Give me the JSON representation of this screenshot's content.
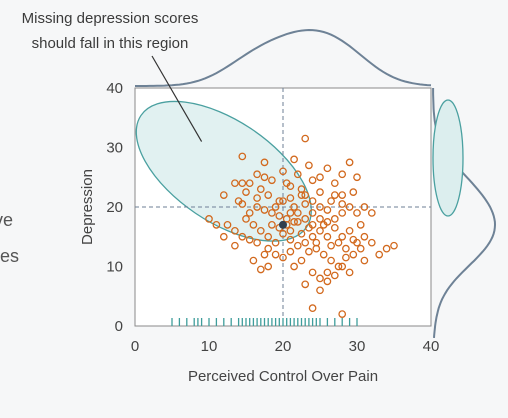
{
  "chart_data": {
    "type": "scatter",
    "xlabel": "Perceived Control Over Pain",
    "ylabel": "Depression",
    "xlim": [
      0,
      40
    ],
    "ylim": [
      0,
      40
    ],
    "xticks": [
      0,
      10,
      20,
      30,
      40
    ],
    "yticks": [
      0,
      10,
      20,
      30,
      40
    ],
    "reference_lines": {
      "x": 20,
      "y": 20
    },
    "mean_point": {
      "x": 20,
      "y": 17
    },
    "annotation": {
      "lines": [
        "Missing depression scores",
        "should fall in this region"
      ],
      "target": {
        "x": 9,
        "y": 31
      }
    },
    "missing_region": {
      "cx": 12,
      "cy": 26,
      "rx": 13.5,
      "ry": 8.5,
      "angle_deg": -34
    },
    "rug_x": [
      5,
      6,
      7,
      8,
      8.5,
      9,
      10,
      11,
      12,
      13,
      14,
      14.5,
      15,
      15.5,
      16,
      16.5,
      17,
      17.5,
      18,
      18.5,
      19,
      19.5,
      20,
      20.5,
      21,
      21.5,
      22,
      22.5,
      23,
      23.5,
      24,
      24.5,
      25,
      26,
      27,
      28,
      29,
      30
    ],
    "points": [
      [
        14.5,
        28.5
      ],
      [
        17.5,
        27.5
      ],
      [
        21.5,
        28
      ],
      [
        23.5,
        27
      ],
      [
        23,
        31.5
      ],
      [
        20,
        26
      ],
      [
        16.5,
        25.5
      ],
      [
        18.5,
        24.5
      ],
      [
        15.5,
        24
      ],
      [
        14.5,
        24
      ],
      [
        13.5,
        24
      ],
      [
        12,
        22
      ],
      [
        17,
        23
      ],
      [
        18,
        22
      ],
      [
        16.5,
        21.5
      ],
      [
        19.5,
        21
      ],
      [
        21,
        23.5
      ],
      [
        22.5,
        23
      ],
      [
        24,
        24.5
      ],
      [
        25,
        25
      ],
      [
        26,
        26.5
      ],
      [
        27,
        24
      ],
      [
        28,
        25.5
      ],
      [
        29,
        27.5
      ],
      [
        30,
        25
      ],
      [
        29.5,
        22.5
      ],
      [
        28,
        22
      ],
      [
        26.5,
        21
      ],
      [
        25,
        22.5
      ],
      [
        24,
        21
      ],
      [
        23,
        20.5
      ],
      [
        22.5,
        22
      ],
      [
        21.5,
        20
      ],
      [
        21,
        19
      ],
      [
        20.5,
        18
      ],
      [
        19.5,
        18.5
      ],
      [
        18.5,
        19
      ],
      [
        17.5,
        19.5
      ],
      [
        16.5,
        20
      ],
      [
        15.5,
        19
      ],
      [
        14.5,
        20.5
      ],
      [
        15,
        18
      ],
      [
        16,
        17
      ],
      [
        17,
        16
      ],
      [
        18,
        15
      ],
      [
        19,
        14
      ],
      [
        20,
        15.5
      ],
      [
        21,
        16
      ],
      [
        22,
        17.5
      ],
      [
        23,
        18
      ],
      [
        24,
        19
      ],
      [
        25,
        18
      ],
      [
        26,
        19.5
      ],
      [
        27,
        18
      ],
      [
        28,
        19
      ],
      [
        29,
        20
      ],
      [
        30,
        19
      ],
      [
        31,
        20
      ],
      [
        32,
        19
      ],
      [
        30.5,
        17
      ],
      [
        29,
        16
      ],
      [
        28,
        15
      ],
      [
        27,
        16.5
      ],
      [
        26,
        15
      ],
      [
        25,
        16
      ],
      [
        24,
        15
      ],
      [
        23,
        14
      ],
      [
        22,
        13.5
      ],
      [
        21,
        14.5
      ],
      [
        22.5,
        11
      ],
      [
        23.5,
        12.5
      ],
      [
        24.5,
        13
      ],
      [
        25.5,
        12
      ],
      [
        26.5,
        11
      ],
      [
        27.5,
        10
      ],
      [
        28.5,
        11.5
      ],
      [
        29.5,
        12
      ],
      [
        30.5,
        13
      ],
      [
        31,
        11
      ],
      [
        29,
        9
      ],
      [
        28,
        10
      ],
      [
        27,
        8.5
      ],
      [
        26,
        9
      ],
      [
        25,
        8
      ],
      [
        24,
        9
      ],
      [
        21.5,
        10
      ],
      [
        20,
        11.5
      ],
      [
        19,
        12
      ],
      [
        18,
        13
      ],
      [
        17.5,
        12
      ],
      [
        16.5,
        14
      ],
      [
        15.5,
        14.5
      ],
      [
        14.5,
        15
      ],
      [
        13.5,
        16
      ],
      [
        12.5,
        17
      ],
      [
        13.5,
        13.5
      ],
      [
        12,
        15
      ],
      [
        11,
        17
      ],
      [
        10,
        18
      ],
      [
        19.5,
        16.5
      ],
      [
        20.5,
        17
      ],
      [
        21.5,
        17.5
      ],
      [
        22.5,
        15.5
      ],
      [
        23.5,
        16.5
      ],
      [
        24.5,
        14
      ],
      [
        25.5,
        17
      ],
      [
        26.5,
        13.5
      ],
      [
        27.5,
        14
      ],
      [
        28.5,
        13
      ],
      [
        29.5,
        14.5
      ],
      [
        30,
        14
      ],
      [
        31,
        15
      ],
      [
        32,
        14
      ],
      [
        33,
        12
      ],
      [
        34,
        13
      ],
      [
        35,
        13.5
      ],
      [
        23,
        7
      ],
      [
        25,
        6
      ],
      [
        28,
        2
      ],
      [
        24,
        3
      ],
      [
        26,
        7.5
      ],
      [
        18,
        10
      ],
      [
        17,
        9.5
      ],
      [
        16,
        11
      ],
      [
        18.5,
        17
      ],
      [
        19,
        20
      ],
      [
        20,
        21
      ],
      [
        21,
        21.5
      ],
      [
        22,
        19
      ],
      [
        23,
        22
      ],
      [
        24,
        17
      ],
      [
        25,
        20
      ],
      [
        26,
        17.5
      ],
      [
        27,
        22
      ],
      [
        28,
        20.5
      ],
      [
        20.5,
        24
      ],
      [
        22,
        25.5
      ],
      [
        17.5,
        25
      ],
      [
        14,
        21
      ],
      [
        15,
        22.5
      ],
      [
        21,
        12.5
      ]
    ]
  }
}
